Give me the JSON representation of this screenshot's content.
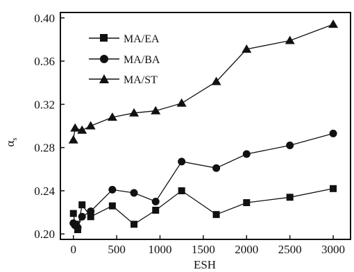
{
  "chart_data": {
    "type": "line",
    "title": "",
    "xlabel": "ESH",
    "ylabel_symbol": "α",
    "ylabel_subscript": "s",
    "xlim": [
      -150,
      3200
    ],
    "ylim": [
      0.195,
      0.405
    ],
    "xticks": [
      0,
      500,
      1000,
      1500,
      2000,
      2500,
      3000
    ],
    "xtick_labels": [
      "0",
      "500",
      "1000",
      "1500",
      "2000",
      "2500",
      "3000"
    ],
    "yticks": [
      0.2,
      0.24,
      0.28,
      0.32,
      0.36,
      0.4
    ],
    "ytick_labels": [
      "0.20",
      "0.24",
      "0.28",
      "0.32",
      "0.36",
      "0.40"
    ],
    "grid": false,
    "legend_position": "top-left",
    "series": [
      {
        "name": "MA/EA",
        "marker": "square",
        "x": [
          0,
          20,
          50,
          100,
          200,
          450,
          700,
          950,
          1250,
          1650,
          2000,
          2500,
          3000
        ],
        "y": [
          0.219,
          0.209,
          0.204,
          0.227,
          0.216,
          0.226,
          0.209,
          0.222,
          0.24,
          0.218,
          0.229,
          0.234,
          0.242
        ]
      },
      {
        "name": "MA/BA",
        "marker": "circle",
        "x": [
          0,
          20,
          50,
          100,
          200,
          450,
          700,
          950,
          1250,
          1650,
          2000,
          2500,
          3000
        ],
        "y": [
          0.21,
          0.208,
          0.206,
          0.216,
          0.221,
          0.241,
          0.238,
          0.23,
          0.267,
          0.261,
          0.274,
          0.282,
          0.293
        ]
      },
      {
        "name": "MA/ST",
        "marker": "triangle",
        "x": [
          0,
          20,
          100,
          200,
          450,
          700,
          950,
          1250,
          1650,
          2000,
          2500,
          3000
        ],
        "y": [
          0.287,
          0.298,
          0.296,
          0.3,
          0.308,
          0.312,
          0.314,
          0.321,
          0.341,
          0.371,
          0.379,
          0.394
        ]
      }
    ]
  },
  "colors": {
    "ink": "#111111",
    "background": "#ffffff"
  }
}
